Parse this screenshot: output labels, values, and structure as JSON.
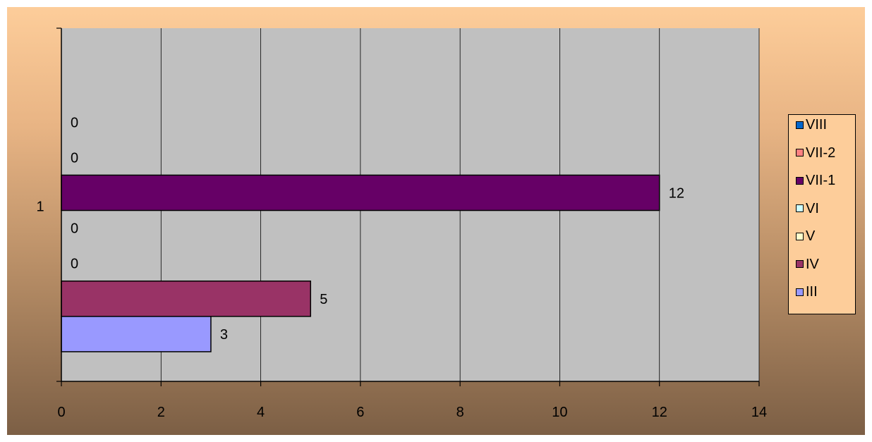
{
  "chart_data": {
    "type": "bar",
    "orientation": "horizontal",
    "categories": [
      "1"
    ],
    "xlim": [
      0,
      14
    ],
    "x_ticks": [
      "0",
      "2",
      "4",
      "6",
      "8",
      "10",
      "12",
      "14"
    ],
    "grid": "vertical",
    "legend_position": "right",
    "title": "",
    "xlabel": "",
    "ylabel": "",
    "series": [
      {
        "name": "III",
        "values": [
          3
        ],
        "color": "#9999ff",
        "label": "3"
      },
      {
        "name": "IV",
        "values": [
          5
        ],
        "color": "#993366",
        "label": "5"
      },
      {
        "name": "V",
        "values": [
          0
        ],
        "color": "#ffffcc",
        "label": "0"
      },
      {
        "name": "VI",
        "values": [
          0
        ],
        "color": "#ccffff",
        "label": "0"
      },
      {
        "name": "VII-1",
        "values": [
          12
        ],
        "color": "#660066",
        "label": "12"
      },
      {
        "name": "VII-2",
        "values": [
          0
        ],
        "color": "#ff8080",
        "label": "0"
      },
      {
        "name": "VIII",
        "values": [
          0
        ],
        "color": "#0066cc",
        "label": "0"
      }
    ],
    "legend_order": [
      "VIII",
      "VII-2",
      "VII-1",
      "VI",
      "V",
      "IV",
      "III"
    ]
  },
  "colors": {
    "plot_background": "#c0c0c0",
    "gridline": "#000000",
    "chart_background_top": "#fdcd9a",
    "chart_background_bottom": "#7c5f45"
  }
}
